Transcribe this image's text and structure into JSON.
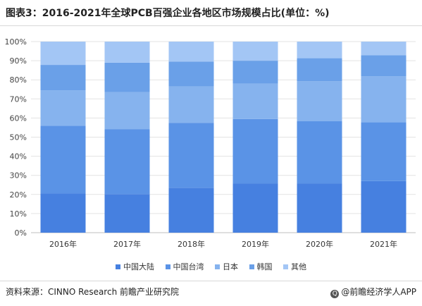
{
  "title": "图表3：2016-2021年全球PCB百强企业各地区市场规模占比(单位：%)",
  "source": "资料来源：CINNO Research 前瞻产业研究院",
  "credit": "@前瞻经济学人APP",
  "colors": {
    "中国大陆": "#4680e0",
    "中国台湾": "#5a93e6",
    "日本": "#86b3ee",
    "韩国": "#6aa0e8",
    "其他": "#a3c6f5"
  },
  "chart_data": {
    "type": "bar",
    "stacked": true,
    "categories": [
      "2016年",
      "2017年",
      "2018年",
      "2019年",
      "2020年",
      "2021年"
    ],
    "y_tick_labels": [
      "0%",
      "10%",
      "20%",
      "30%",
      "40%",
      "50%",
      "60%",
      "70%",
      "80%",
      "90%",
      "100%"
    ],
    "ylim": [
      0,
      100
    ],
    "grid": true,
    "legend_position": "bottom",
    "series": [
      {
        "name": "中国大陆",
        "values": [
          20.5,
          20.2,
          23.5,
          25.8,
          25.8,
          27.0
        ]
      },
      {
        "name": "中国台湾",
        "values": [
          35.5,
          34.0,
          34.0,
          33.7,
          32.5,
          30.8
        ]
      },
      {
        "name": "日本",
        "values": [
          18.5,
          19.3,
          19.0,
          18.5,
          21.0,
          24.0
        ]
      },
      {
        "name": "韩国",
        "values": [
          13.3,
          15.5,
          13.0,
          12.0,
          12.0,
          11.0
        ]
      },
      {
        "name": "其他",
        "values": [
          12.2,
          11.0,
          10.5,
          10.0,
          8.7,
          7.2
        ]
      }
    ]
  }
}
